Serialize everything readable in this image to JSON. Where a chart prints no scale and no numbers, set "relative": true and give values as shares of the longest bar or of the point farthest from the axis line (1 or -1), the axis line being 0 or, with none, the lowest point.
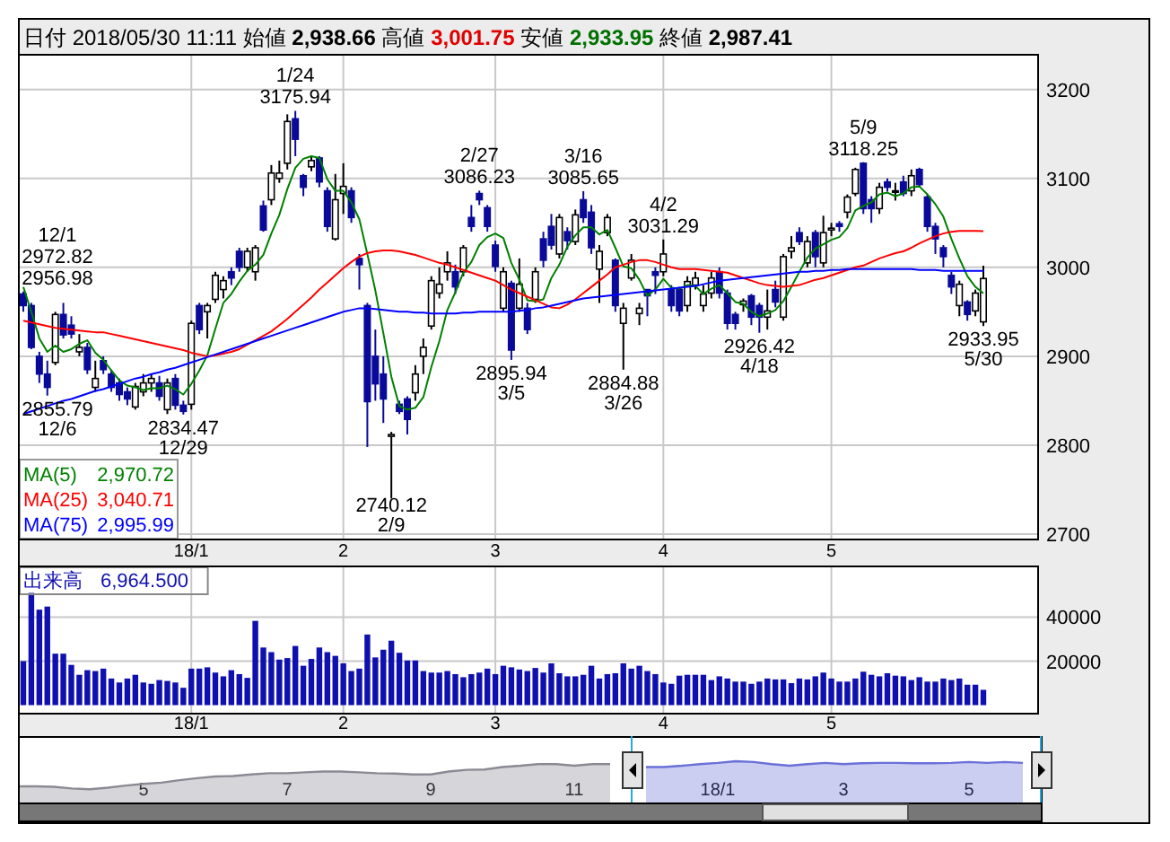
{
  "chart_data": [
    {
      "type": "candlestick",
      "title": "日付 2018/05/30 11:11  始値 2,938.66  高値 3,001.75  安値 2,933.95  終値 2,987.41",
      "categories": [
        null,
        null,
        null,
        null,
        null,
        null,
        null,
        null,
        null,
        null,
        null,
        null,
        null,
        null,
        null,
        null,
        null,
        null,
        null,
        null,
        null,
        "18/1",
        null,
        null,
        null,
        null,
        null,
        null,
        null,
        null,
        null,
        null,
        null,
        null,
        null,
        null,
        null,
        null,
        null,
        null,
        "2",
        null,
        null,
        null,
        null,
        null,
        null,
        null,
        null,
        null,
        null,
        null,
        null,
        null,
        null,
        null,
        null,
        null,
        null,
        "3",
        null,
        null,
        null,
        null,
        null,
        null,
        null,
        null,
        null,
        null,
        null,
        null,
        null,
        null,
        null,
        null,
        null,
        null,
        null,
        null,
        "4",
        null,
        null,
        null,
        null,
        null,
        null,
        null,
        null,
        null,
        null,
        null,
        null,
        null,
        null,
        null,
        null,
        null,
        null,
        null,
        null,
        "5",
        null,
        null,
        null,
        null,
        null,
        null,
        null,
        null,
        null,
        null,
        null,
        null,
        null,
        null,
        null,
        null,
        null,
        null,
        null
      ],
      "ohlc": [
        [
          2970,
          2972.82,
          2950,
          2957
        ],
        [
          2957,
          2960,
          2908,
          2910
        ],
        [
          2900,
          2905,
          2870,
          2880
        ],
        [
          2880,
          2895,
          2855.79,
          2865
        ],
        [
          2893,
          2950,
          2890,
          2947
        ],
        [
          2947,
          2960,
          2920,
          2924
        ],
        [
          2935,
          2945,
          2920,
          2925
        ],
        [
          2905,
          2925,
          2900,
          2910
        ],
        [
          2910,
          2915,
          2880,
          2885
        ],
        [
          2865,
          2895,
          2860,
          2875
        ],
        [
          2895,
          2900,
          2880,
          2885
        ],
        [
          2880,
          2885,
          2860,
          2865
        ],
        [
          2870,
          2875,
          2850,
          2857
        ],
        [
          2860,
          2865,
          2845,
          2852
        ],
        [
          2843,
          2870,
          2840,
          2866
        ],
        [
          2860,
          2880,
          2855,
          2870
        ],
        [
          2870,
          2880,
          2860,
          2875
        ],
        [
          2870,
          2878,
          2850,
          2855
        ],
        [
          2840,
          2875,
          2835,
          2870
        ],
        [
          2875,
          2880,
          2840,
          2845
        ],
        [
          2845,
          2850,
          2834.47,
          2838
        ],
        [
          2846,
          2940,
          2840,
          2937
        ],
        [
          2957,
          2960,
          2925,
          2930
        ],
        [
          2950,
          2960,
          2920,
          2957
        ],
        [
          2964,
          2995,
          2960,
          2991
        ],
        [
          2975,
          2990,
          2965,
          2985
        ],
        [
          2995,
          3000,
          2980,
          2988
        ],
        [
          3018,
          3022,
          2995,
          3000
        ],
        [
          3000,
          3022,
          2995,
          3018
        ],
        [
          2995,
          3025,
          2985,
          3022
        ],
        [
          3069,
          3075,
          3040,
          3042
        ],
        [
          3076,
          3115,
          3070,
          3106
        ],
        [
          3100,
          3120,
          3095,
          3106
        ],
        [
          3117,
          3172,
          3110,
          3164
        ],
        [
          3167,
          3175.94,
          3125,
          3144
        ],
        [
          3103,
          3105,
          3080,
          3090
        ],
        [
          3113,
          3125,
          3108,
          3120
        ],
        [
          3123,
          3125,
          3090,
          3096
        ],
        [
          3086,
          3090,
          3040,
          3046
        ],
        [
          3032,
          3105,
          3030,
          3076
        ],
        [
          3083,
          3117,
          3060,
          3091
        ],
        [
          3086,
          3090,
          3050,
          3056
        ],
        [
          3010,
          3015,
          2975,
          3003
        ],
        [
          2957,
          2960,
          2798,
          2849
        ],
        [
          2900,
          2930,
          2850,
          2869
        ],
        [
          2880,
          2900,
          2825,
          2852
        ],
        [
          2810,
          2815,
          2740.12,
          2812
        ],
        [
          2846,
          2850,
          2835,
          2838
        ],
        [
          2852,
          2855,
          2812,
          2829
        ],
        [
          2859,
          2890,
          2850,
          2880
        ],
        [
          2900,
          2920,
          2880,
          2910
        ],
        [
          2934,
          2990,
          2930,
          2985
        ],
        [
          2971,
          3000,
          2965,
          2981
        ],
        [
          2995,
          3018,
          2985,
          3005
        ],
        [
          2995,
          3003,
          2970,
          2978
        ],
        [
          2995,
          3025,
          2990,
          3022
        ],
        [
          3056,
          3070,
          3040,
          3046
        ],
        [
          3083,
          3086.23,
          3070,
          3076
        ],
        [
          3067,
          3070,
          3040,
          3046
        ],
        [
          3025,
          3030,
          2995,
          3001
        ],
        [
          2954,
          3000,
          2950,
          2995
        ],
        [
          2982,
          2985,
          2895.94,
          2907
        ],
        [
          2954,
          3010,
          2950,
          2981
        ],
        [
          2954,
          2960,
          2925,
          2930
        ],
        [
          2964,
          3000,
          2960,
          2995
        ],
        [
          3032,
          3040,
          3000,
          3008
        ],
        [
          3046,
          3060,
          3020,
          3025
        ],
        [
          3015,
          3060,
          3010,
          3056
        ],
        [
          3040,
          3045,
          3020,
          3030
        ],
        [
          3029,
          3065,
          3025,
          3059
        ],
        [
          3076,
          3085.65,
          3050,
          3056
        ],
        [
          3062,
          3070,
          3015,
          3022
        ],
        [
          2998,
          3025,
          2960,
          3018
        ],
        [
          3039,
          3060,
          3035,
          3056
        ],
        [
          3008,
          3010,
          2950,
          2957
        ],
        [
          2937,
          2960,
          2884.88,
          2954
        ],
        [
          2988,
          3015,
          2985,
          3008
        ],
        [
          2948,
          2960,
          2935,
          2954
        ],
        [
          2975,
          2975,
          2945,
          2968
        ],
        [
          2995,
          3000,
          2970,
          2991
        ],
        [
          2995,
          3031.29,
          2990,
          3015
        ],
        [
          2975,
          2980,
          2950,
          2957
        ],
        [
          2975,
          2978,
          2945,
          2951
        ],
        [
          2957,
          2990,
          2950,
          2984
        ],
        [
          2980,
          2995,
          2975,
          2988
        ],
        [
          2957,
          2980,
          2950,
          2970
        ],
        [
          2971,
          2995,
          2965,
          2988
        ],
        [
          2995,
          3000,
          2965,
          2971
        ],
        [
          2971,
          2975,
          2930,
          2937
        ],
        [
          2947,
          2950,
          2930,
          2937
        ],
        [
          2958,
          2965,
          2950,
          2962
        ],
        [
          2968,
          2970,
          2935,
          2944
        ],
        [
          2957,
          2960,
          2926.42,
          2944
        ],
        [
          2944,
          2975,
          2930,
          2951
        ],
        [
          2975,
          2985,
          2955,
          2961
        ],
        [
          2944,
          3015,
          2940,
          3012
        ],
        [
          3018,
          3035,
          3010,
          3022
        ],
        [
          3039,
          3045,
          3025,
          3029
        ],
        [
          3005,
          3035,
          3000,
          3029
        ],
        [
          3039,
          3042,
          3000,
          3012
        ],
        [
          3005,
          3058,
          3000,
          3039
        ],
        [
          3042,
          3050,
          3035,
          3044
        ],
        [
          3049,
          3052,
          3040,
          3046
        ],
        [
          3062,
          3082,
          3055,
          3079
        ],
        [
          3083,
          3112,
          3080,
          3110
        ],
        [
          3117,
          3118.25,
          3060,
          3066
        ],
        [
          3076,
          3080,
          3050,
          3066
        ],
        [
          3066,
          3095,
          3060,
          3090
        ],
        [
          3096,
          3100,
          3085,
          3090
        ],
        [
          3086,
          3095,
          3075,
          3086
        ],
        [
          3096,
          3103,
          3080,
          3083
        ],
        [
          3086,
          3110,
          3080,
          3103
        ],
        [
          3110,
          3112,
          3090,
          3093
        ],
        [
          3079,
          3082,
          3040,
          3046
        ],
        [
          3046,
          3050,
          3015,
          3032
        ],
        [
          3022,
          3025,
          3000,
          3012
        ],
        [
          2991,
          2995,
          2970,
          2978
        ],
        [
          2957,
          2985,
          2945,
          2981
        ],
        [
          2961,
          2963,
          2940,
          2947
        ],
        [
          2951,
          2975,
          2945,
          2971
        ],
        [
          2938.66,
          3001.75,
          2933.95,
          2987.41
        ]
      ],
      "series": [
        {
          "name": "MA(5)",
          "type": "line",
          "color": "#008000",
          "values": [
            2978,
            2950,
            2920,
            2905,
            2912,
            2905,
            2908,
            2914,
            2918,
            2904,
            2896,
            2884,
            2873,
            2867,
            2865,
            2862,
            2864,
            2864,
            2867,
            2863,
            2857,
            2869,
            2884,
            2901,
            2931,
            2960,
            2970,
            2984,
            2996,
            3003,
            3014,
            3038,
            3059,
            3088,
            3112,
            3122,
            3125,
            3123,
            3099,
            3086,
            3086,
            3073,
            3054,
            3015,
            2974,
            2926,
            2877,
            2844,
            2840,
            2842,
            2854,
            2888,
            2917,
            2952,
            2972,
            2994,
            3006,
            3025,
            3034,
            3038,
            3033,
            3005,
            2986,
            2963,
            2962,
            2964,
            2988,
            3003,
            3023,
            3036,
            3045,
            3045,
            3037,
            3042,
            3022,
            3001,
            2999,
            2986,
            2968,
            2975,
            2987,
            2977,
            2976,
            2980,
            2979,
            2970,
            2976,
            2980,
            2971,
            2961,
            2959,
            2950,
            2945,
            2948,
            2952,
            2962,
            2978,
            2995,
            3011,
            3021,
            3026,
            3031,
            3034,
            3044,
            3064,
            3069,
            3073,
            3082,
            3084,
            3080,
            3083,
            3090,
            3091,
            3082,
            3071,
            3057,
            3032,
            3010,
            2990,
            2978,
            2970.72
          ]
        },
        {
          "name": "MA(25)",
          "type": "line",
          "color": "#ff0000",
          "values": [
            2940,
            2938,
            2936,
            2934,
            2932,
            2931,
            2930,
            2929,
            2928,
            2927,
            2927,
            2925,
            2923,
            2921,
            2919,
            2917,
            2915,
            2913,
            2911,
            2909,
            2907,
            2904,
            2902,
            2900,
            2901,
            2903,
            2905,
            2908,
            2913,
            2918,
            2923,
            2928,
            2935,
            2942,
            2950,
            2958,
            2966,
            2975,
            2983,
            2991,
            2999,
            3006,
            3012,
            3016,
            3018,
            3019,
            3019,
            3018,
            3016,
            3014,
            3011,
            3008,
            3005,
            3003,
            3000,
            2997,
            2994,
            2991,
            2988,
            2985,
            2980,
            2975,
            2971,
            2967,
            2963,
            2959,
            2955,
            2954,
            2958,
            2964,
            2971,
            2978,
            2985,
            2992,
            3000,
            3003,
            3006,
            3008,
            3008,
            3006,
            3003,
            3000,
            2998,
            2998,
            2998,
            2997,
            2996,
            2995,
            2994,
            2991,
            2988,
            2985,
            2982,
            2980,
            2979,
            2978,
            2979,
            2980,
            2983,
            2986,
            2988,
            2991,
            2994,
            2997,
            3000,
            3002,
            3006,
            3010,
            3013,
            3016,
            3018,
            3022,
            3027,
            3031,
            3035,
            3038,
            3040,
            3041,
            3041,
            3041,
            3040.71
          ]
        },
        {
          "name": "MA(75)",
          "type": "line",
          "color": "#0000ff",
          "values": [
            2835,
            2838,
            2841,
            2844,
            2847,
            2850,
            2852,
            2855,
            2858,
            2861,
            2863,
            2866,
            2869,
            2872,
            2875,
            2877,
            2880,
            2882,
            2885,
            2887,
            2890,
            2893,
            2896,
            2899,
            2902,
            2905,
            2908,
            2911,
            2914,
            2917,
            2920,
            2923,
            2926,
            2929,
            2932,
            2935,
            2938,
            2941,
            2944,
            2947,
            2950,
            2952,
            2954,
            2954,
            2953,
            2952,
            2951,
            2950,
            2950,
            2949,
            2949,
            2948,
            2948,
            2948,
            2948,
            2949,
            2949,
            2950,
            2950,
            2950,
            2950,
            2950,
            2951,
            2952,
            2954,
            2955,
            2957,
            2959,
            2961,
            2963,
            2965,
            2966,
            2967,
            2968,
            2969,
            2970,
            2971,
            2972,
            2973,
            2974,
            2975,
            2976,
            2977,
            2978,
            2979,
            2981,
            2983,
            2985,
            2986,
            2987,
            2988,
            2989,
            2990,
            2991,
            2992,
            2993,
            2994,
            2995,
            2995,
            2996,
            2996,
            2997,
            2997,
            2998,
            2998,
            2998,
            2998,
            2998,
            2998,
            2998,
            2998,
            2998,
            2997,
            2997,
            2997,
            2996,
            2996,
            2996,
            2996,
            2996,
            2995.99
          ]
        }
      ],
      "ylim": [
        2695,
        3240
      ],
      "yticks": [
        2700,
        2800,
        2900,
        3000,
        3100,
        3200
      ],
      "grid": true,
      "legend": "bottom left",
      "annotations": [
        "12/1",
        "2972.82",
        "2956.98",
        {
          "text": "2855.79",
          "y": 2855.79
        },
        {
          "text": "12/6",
          "y": 2855.79
        },
        {
          "text": "2834.47",
          "y": 2834.47
        },
        {
          "text": "12/29",
          "y": 2834.47
        },
        {
          "text": "1/24",
          "y": 3175.94
        },
        {
          "text": "3175.94",
          "y": 3175.94
        },
        {
          "text": "2740.12",
          "y": 2740.12
        },
        {
          "text": "2/9",
          "y": 2740.12
        },
        {
          "text": "2/27",
          "y": 3086.23
        },
        {
          "text": "3086.23",
          "y": 3086.23
        },
        {
          "text": "2895.94",
          "y": 2895.94
        },
        {
          "text": "3/5",
          "y": 2895.94
        },
        {
          "text": "3/16",
          "y": 3085.65
        },
        {
          "text": "3085.65",
          "y": 3085.65
        },
        {
          "text": "2884.88",
          "y": 2884.88
        },
        {
          "text": "3/26",
          "y": 2884.88
        },
        {
          "text": "4/2",
          "y": 3031.29
        },
        {
          "text": "3031.29",
          "y": 3031.29
        },
        {
          "text": "2926.42",
          "y": 2926.42
        },
        {
          "text": "4/18",
          "y": 2926.42
        },
        {
          "text": "5/9",
          "y": 3118.25
        },
        {
          "text": "3118.25",
          "y": 3118.25
        },
        {
          "text": "2933.95",
          "y": 2933.95
        },
        {
          "text": "5/30",
          "y": 2933.95
        },
        "2,970.72",
        "3,040.71",
        "2,995.99"
      ]
    },
    {
      "type": "bar",
      "title": "出来高",
      "categories": [
        null,
        null,
        null,
        null,
        null,
        null,
        null,
        null,
        null,
        null,
        null,
        null,
        null,
        null,
        null,
        null,
        null,
        null,
        null,
        null,
        null,
        "18/1",
        null,
        null,
        null,
        null,
        null,
        null,
        null,
        null,
        null,
        null,
        null,
        null,
        null,
        null,
        null,
        null,
        null,
        null,
        "2",
        null,
        null,
        null,
        null,
        null,
        null,
        null,
        null,
        null,
        null,
        null,
        null,
        null,
        null,
        null,
        null,
        null,
        null,
        "3",
        null,
        null,
        null,
        null,
        null,
        null,
        null,
        null,
        null,
        null,
        null,
        null,
        null,
        null,
        null,
        null,
        null,
        null,
        null,
        null,
        "4",
        null,
        null,
        null,
        null,
        null,
        null,
        null,
        null,
        null,
        null,
        null,
        null,
        null,
        null,
        null,
        null,
        null,
        null,
        null,
        null,
        "5",
        null,
        null,
        null,
        null,
        null,
        null,
        null,
        null,
        null,
        null,
        null,
        null,
        null,
        null,
        null,
        null,
        null,
        null,
        null
      ],
      "series": [
        {
          "color": "#1010b0",
          "values": [
            20000,
            51000,
            43400,
            44800,
            23400,
            23400,
            18300,
            13800,
            15900,
            15500,
            16600,
            12100,
            10300,
            12100,
            13800,
            10300,
            9700,
            11400,
            11000,
            10300,
            7900,
            16600,
            16600,
            17200,
            14800,
            13100,
            15900,
            14100,
            12400,
            38300,
            26200,
            24100,
            20700,
            21400,
            26900,
            17900,
            21000,
            26200,
            24100,
            22400,
            19000,
            15500,
            16600,
            32100,
            21700,
            25200,
            29300,
            23800,
            20300,
            20300,
            15500,
            14800,
            14800,
            15500,
            14100,
            12700,
            14100,
            14800,
            16600,
            14100,
            17900,
            17200,
            16200,
            15500,
            16900,
            14800,
            19000,
            14500,
            13100,
            13100,
            13800,
            17900,
            12100,
            14100,
            14500,
            19000,
            16600,
            17900,
            15500,
            14100,
            10300,
            9700,
            13400,
            13800,
            13800,
            13800,
            11400,
            13100,
            12100,
            10700,
            10700,
            9700,
            10700,
            12100,
            11700,
            11700,
            10000,
            12100,
            11700,
            13100,
            14800,
            12100,
            10700,
            10700,
            12100,
            15200,
            13800,
            13100,
            14500,
            13400,
            13100,
            11400,
            12700,
            10700,
            10700,
            12100,
            11400,
            12100,
            9300,
            9300,
            6964.5
          ]
        }
      ],
      "ylim": [
        -3450,
        63450
      ],
      "yticks": [
        20000,
        40000
      ],
      "grid": true,
      "annotations": [
        "6,964.500"
      ]
    },
    {
      "type": "area",
      "relative": true,
      "tick_labels": "x",
      "grid": "x",
      "categories": [
        null,
        null,
        null,
        null,
        null,
        null,
        null,
        "5",
        null,
        null,
        null,
        null,
        null,
        null,
        null,
        "7",
        null,
        null,
        null,
        null,
        null,
        null,
        null,
        "9",
        null,
        null,
        null,
        null,
        null,
        null,
        null,
        "11",
        null,
        null,
        null,
        null,
        null,
        null,
        null,
        "18/1",
        null,
        null,
        null,
        null,
        null,
        null,
        "3",
        null,
        null,
        null,
        null,
        null,
        null,
        "5",
        null,
        null,
        null,
        null
      ],
      "series": [
        {
          "color": "#8a8a94",
          "values": [
            0.39,
            0.39,
            0.38,
            0.34,
            0.32,
            0.36,
            0.41,
            0.45,
            0.48,
            0.54,
            0.59,
            0.63,
            0.64,
            0.68,
            0.71,
            0.71,
            0.73,
            0.75,
            0.75,
            0.73,
            0.71,
            0.7,
            0.68,
            0.68,
            0.75,
            0.79,
            0.8,
            0.86,
            0.89,
            0.93,
            0.93,
            0.89,
            0.93,
            0.93,
            null,
            null,
            null,
            null,
            null,
            null,
            null,
            null,
            null,
            null,
            null,
            null,
            null,
            null,
            null,
            null,
            null,
            null,
            null,
            null,
            null,
            null,
            null,
            null
          ]
        },
        {
          "color": "#6a70d8",
          "values": [
            null,
            null,
            null,
            null,
            null,
            null,
            null,
            null,
            null,
            null,
            null,
            null,
            null,
            null,
            null,
            null,
            null,
            null,
            null,
            null,
            null,
            null,
            null,
            null,
            null,
            null,
            null,
            null,
            null,
            null,
            null,
            null,
            null,
            null,
            null,
            0.86,
            0.86,
            0.89,
            0.93,
            0.96,
            1,
            0.98,
            0.93,
            0.89,
            0.93,
            0.96,
            0.93,
            0.95,
            0.96,
            0.96,
            0.95,
            0.95,
            0.96,
            0.98,
            0.96,
            0.98,
            0.96,
            null
          ]
        }
      ]
    }
  ]
}
